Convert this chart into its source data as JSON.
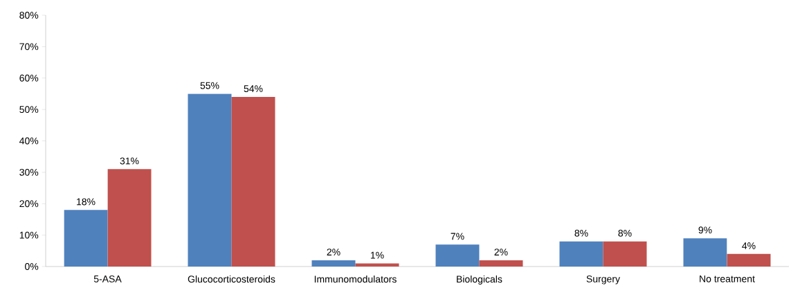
{
  "chart_data": {
    "type": "bar",
    "categories": [
      "5-ASA",
      "Glucocorticosteroids",
      "Immunomodulators",
      "Biologicals",
      "Surgery",
      "No treatment"
    ],
    "series": [
      {
        "color": "#4f81bd",
        "values": [
          18,
          55,
          2,
          7,
          8,
          9
        ],
        "value_labels": [
          "18%",
          "55%",
          "2%",
          "7%",
          "8%",
          "9%"
        ]
      },
      {
        "color": "#c0504d",
        "values": [
          31,
          54,
          1,
          2,
          8,
          4
        ],
        "value_labels": [
          "31%",
          "54%",
          "1%",
          "2%",
          "8%",
          "4%"
        ]
      }
    ],
    "ylim": [
      0,
      80
    ],
    "yticks": [
      {
        "value": 0,
        "label": "0%"
      },
      {
        "value": 10,
        "label": "10%"
      },
      {
        "value": 20,
        "label": "20%"
      },
      {
        "value": 30,
        "label": "30%"
      },
      {
        "value": 40,
        "label": "40%"
      },
      {
        "value": 50,
        "label": "50%"
      },
      {
        "value": 60,
        "label": "60%"
      },
      {
        "value": 70,
        "label": "70%"
      },
      {
        "value": 80,
        "label": "80%"
      }
    ],
    "grid": false
  }
}
